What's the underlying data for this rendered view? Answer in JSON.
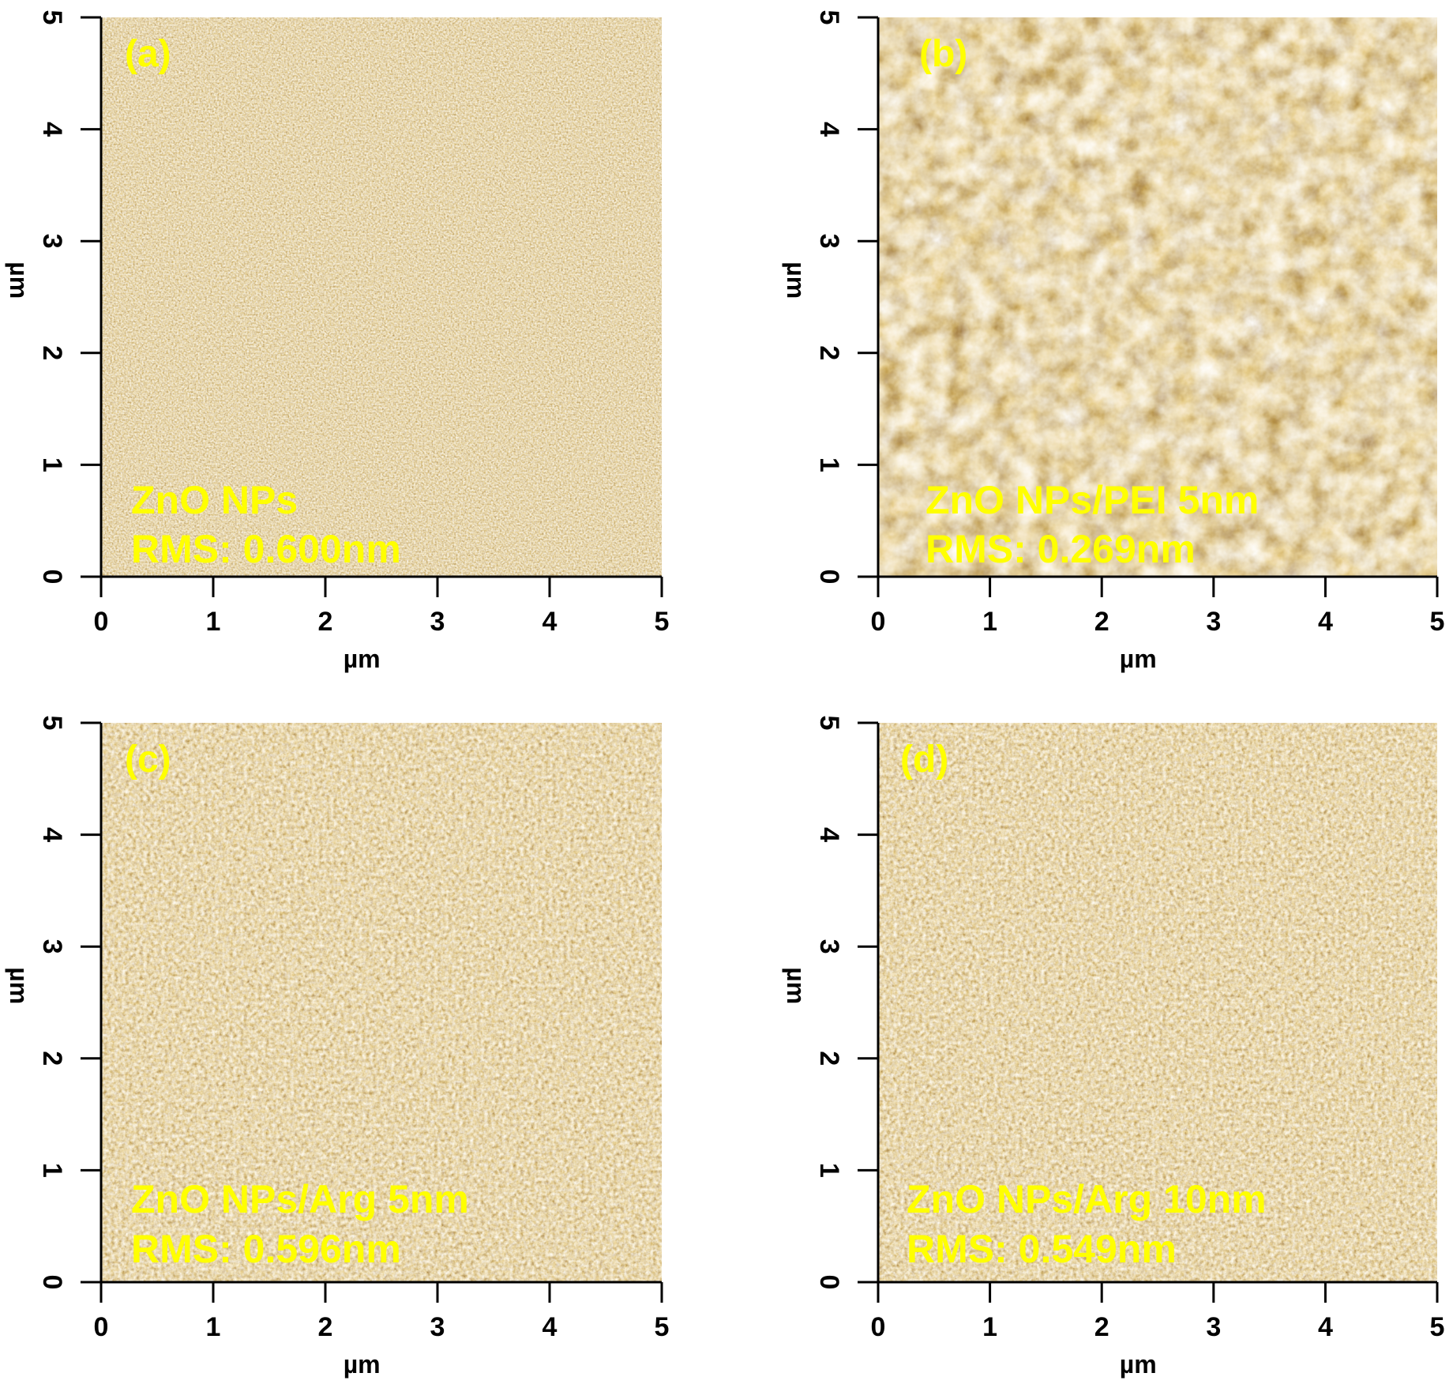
{
  "figure": {
    "label_color": "#ffff00",
    "colormap": [
      "#2a0d00",
      "#5a2a04",
      "#8c5512",
      "#c08a2e",
      "#e6c274",
      "#fff6dc"
    ],
    "panels": [
      {
        "id": "a",
        "letter": "(a)",
        "sample": "ZnO NPs",
        "rms": "RMS: 0.600nm",
        "x_label": "µm",
        "y_label": "µm",
        "x_ticks": [
          "0",
          "1",
          "2",
          "3",
          "4",
          "5"
        ],
        "y_ticks": [
          "0",
          "1",
          "2",
          "3",
          "4",
          "5"
        ],
        "texture": "fine"
      },
      {
        "id": "b",
        "letter": "(b)",
        "sample": "ZnO NPs/PEI 5nm",
        "rms": "RMS: 0.269nm",
        "x_label": "µm",
        "y_label": "µm",
        "x_ticks": [
          "0",
          "1",
          "2",
          "3",
          "4",
          "5"
        ],
        "y_ticks": [
          "0",
          "1",
          "2",
          "3",
          "4",
          "5"
        ],
        "texture": "coarse"
      },
      {
        "id": "c",
        "letter": "(c)",
        "sample": "ZnO NPs/Arg 5nm",
        "rms": "RMS: 0.596nm",
        "x_label": "µm",
        "y_label": "µm",
        "x_ticks": [
          "0",
          "1",
          "2",
          "3",
          "4",
          "5"
        ],
        "y_ticks": [
          "0",
          "1",
          "2",
          "3",
          "4",
          "5"
        ],
        "texture": "medium"
      },
      {
        "id": "d",
        "letter": "(d)",
        "sample": "ZnO NPs/Arg 10nm",
        "rms": "RMS: 0.549nm",
        "x_label": "µm",
        "y_label": "µm",
        "x_ticks": [
          "0",
          "1",
          "2",
          "3",
          "4",
          "5"
        ],
        "y_ticks": [
          "0",
          "1",
          "2",
          "3",
          "4",
          "5"
        ],
        "texture": "medium"
      }
    ]
  }
}
